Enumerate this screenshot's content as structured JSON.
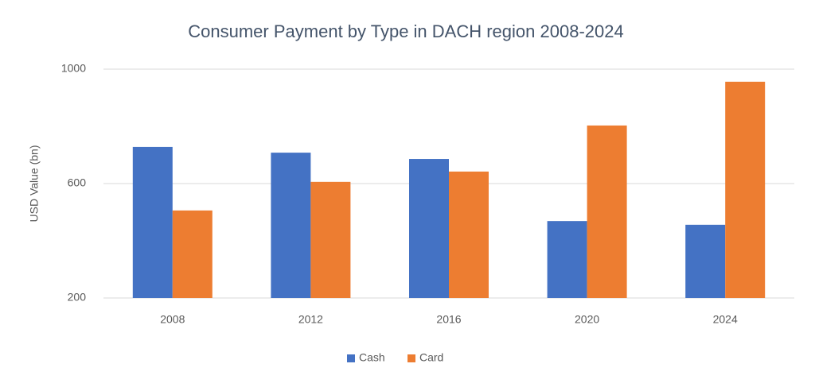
{
  "chart_data": {
    "type": "bar",
    "title": "Consumer Payment by Type in DACH region 2008-2024",
    "y_label": "USD Value (bn)",
    "categories": [
      "2008",
      "2012",
      "2016",
      "2020",
      "2024"
    ],
    "series": [
      {
        "name": "Cash",
        "color": "#4472c4",
        "values": [
          728,
          708,
          686,
          469,
          456
        ]
      },
      {
        "name": "Card",
        "color": "#ed7d31",
        "values": [
          506,
          606,
          642,
          803,
          956
        ]
      }
    ],
    "ylim": [
      200,
      1000
    ],
    "yticks": [
      200,
      600,
      1000
    ],
    "grid": true,
    "legend": "bottom"
  }
}
